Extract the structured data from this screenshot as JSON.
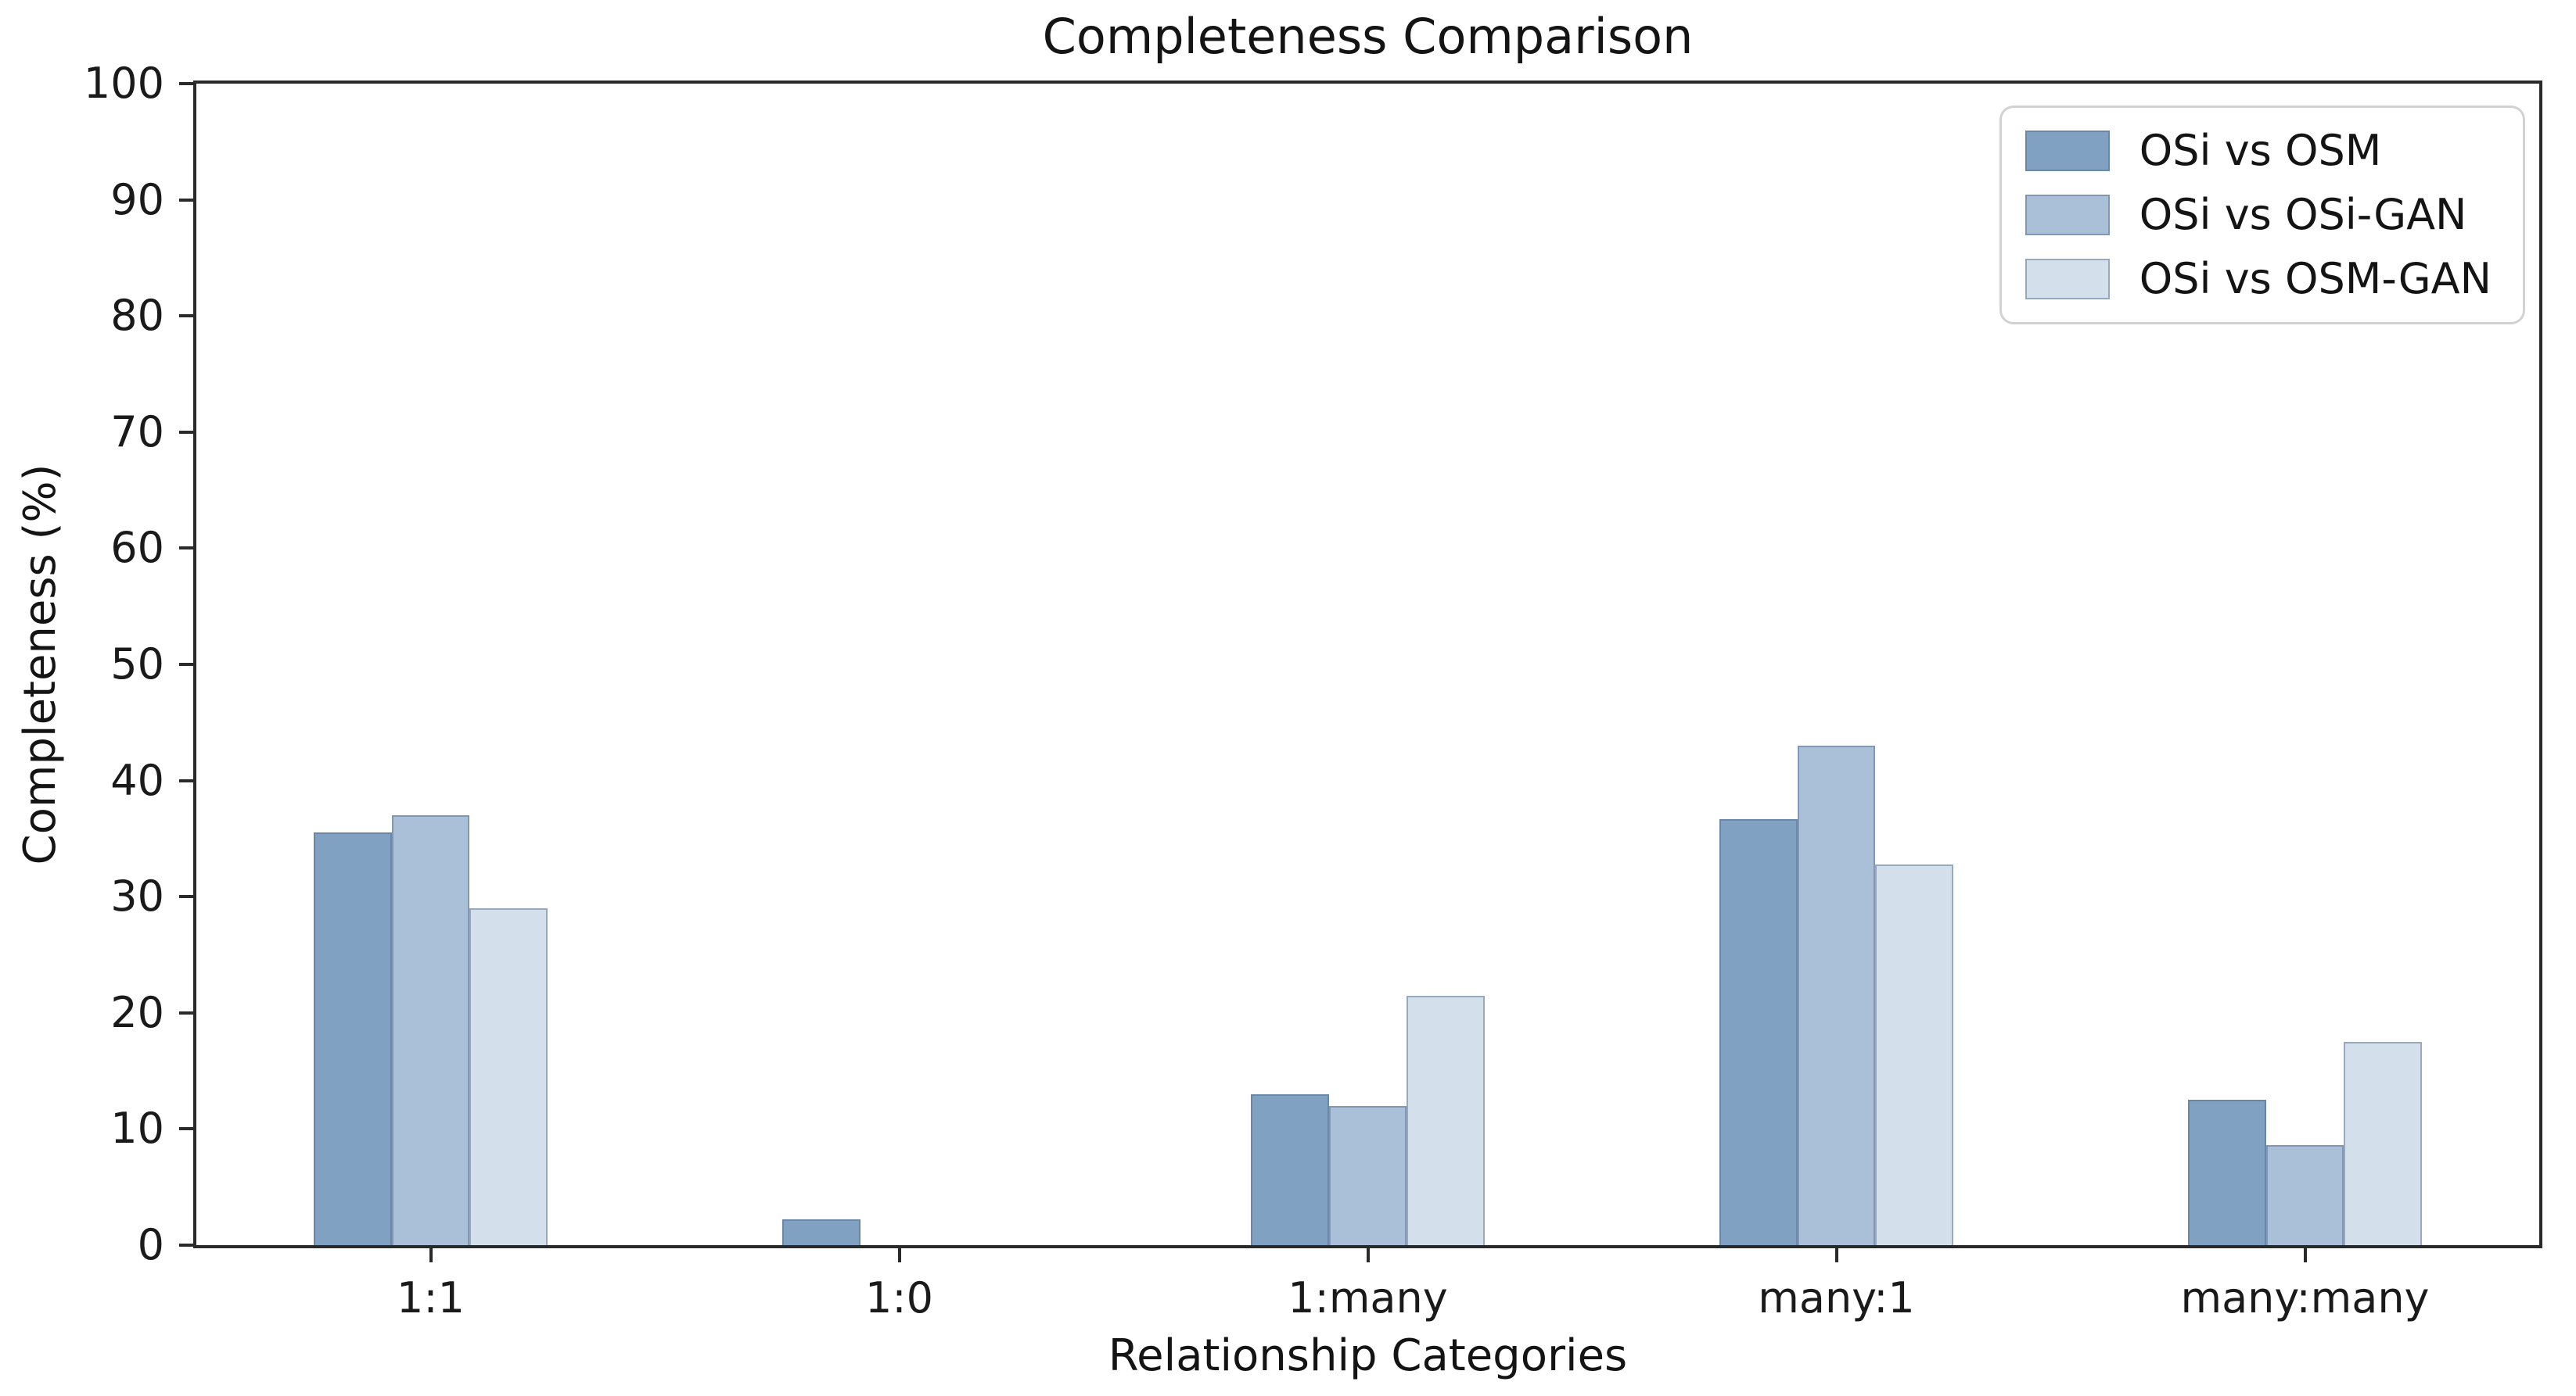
{
  "chart_data": {
    "type": "bar",
    "title": "Completeness Comparison",
    "xlabel": "Relationship Categories",
    "ylabel": "Completeness (%)",
    "categories": [
      "1:1",
      "1:0",
      "1:many",
      "many:1",
      "many:many"
    ],
    "series": [
      {
        "name": "OSi vs OSM",
        "color": "#81a1c2",
        "values": [
          35.5,
          2.2,
          13.0,
          36.7,
          12.5
        ]
      },
      {
        "name": "OSi vs OSi-GAN",
        "color": "#a9c0d8",
        "values": [
          37.0,
          0.0,
          12.0,
          43.0,
          8.6
        ]
      },
      {
        "name": "OSi vs OSM-GAN",
        "color": "#d4dfec",
        "values": [
          29.0,
          0.0,
          21.5,
          32.8,
          17.5
        ]
      }
    ],
    "ylim": [
      0,
      100
    ],
    "ytick_step": 10,
    "yticks": [
      0,
      10,
      20,
      30,
      40,
      50,
      60,
      70,
      80,
      90,
      100
    ],
    "grid": false,
    "legend_position": "upper right",
    "bar_group_fill_ratio": 0.5,
    "axis_color": "#2a2a2a",
    "text_color": "#141414",
    "background_color": "#ffffff"
  }
}
